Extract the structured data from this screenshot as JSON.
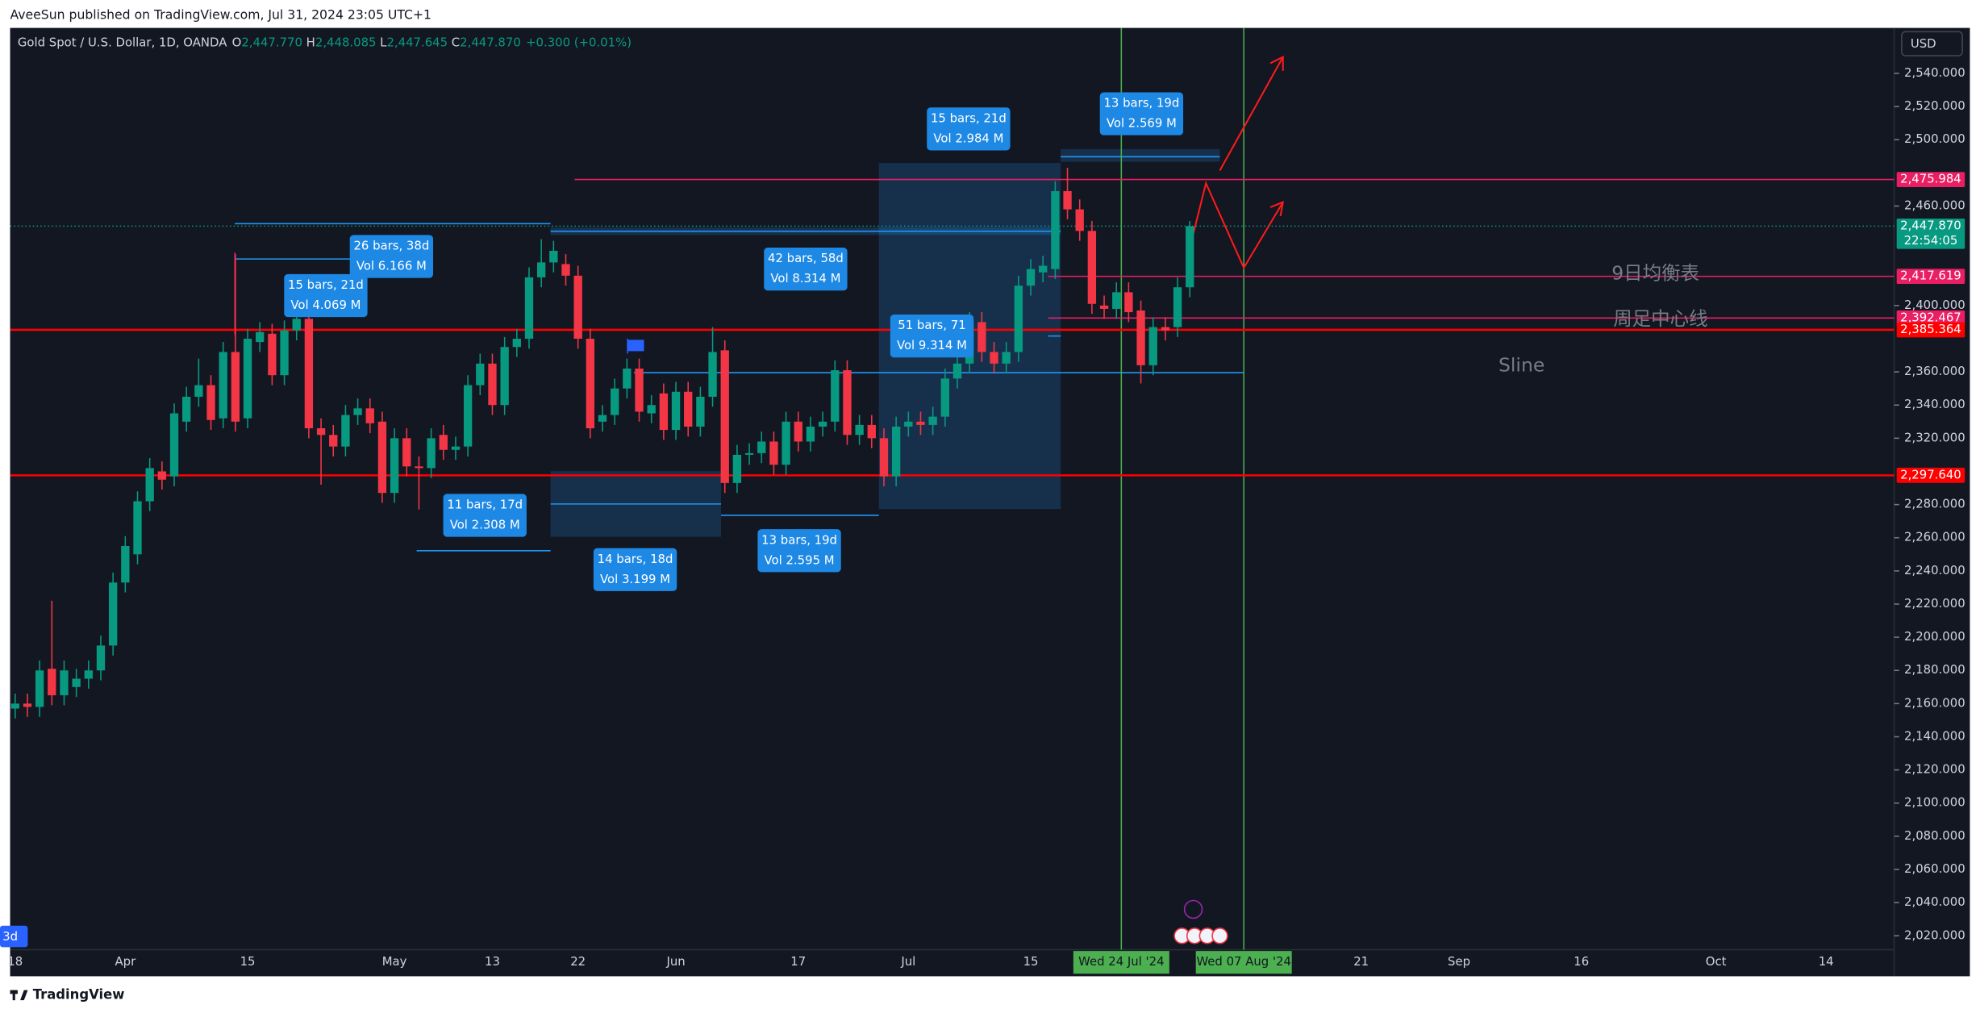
{
  "header": {
    "publisher": "AveeSun published on TradingView.com, Jul 31, 2024 23:05 UTC+1"
  },
  "footer": {
    "brand": "TradingView"
  },
  "chart_data": {
    "type": "candlestick",
    "title": "Gold Spot / U.S. Dollar, 1D, OANDA",
    "ohlc_legend": [
      {
        "key": "O",
        "value": "2,447.770"
      },
      {
        "key": "H",
        "value": "2,448.085"
      },
      {
        "key": "L",
        "value": "2,447.645"
      },
      {
        "key": "C",
        "value": "2,447.870"
      }
    ],
    "change": "+0.300 (+0.01%)",
    "currency": "USD",
    "interval_badge": "3d",
    "up_color": "#089981",
    "down_color": "#f23645",
    "grid": false,
    "categories": [
      "18",
      null,
      null,
      null,
      null,
      null,
      null,
      null,
      null,
      "Apr",
      null,
      null,
      null,
      null,
      null,
      null,
      null,
      null,
      null,
      "15",
      null,
      null,
      null,
      null,
      null,
      null,
      null,
      null,
      null,
      null,
      null,
      "May",
      null,
      null,
      null,
      null,
      null,
      null,
      null,
      "13",
      null,
      null,
      null,
      null,
      null,
      null,
      "22",
      null,
      null,
      null,
      null,
      null,
      null,
      null,
      "Jun",
      null,
      null,
      null,
      null,
      null,
      null,
      null,
      null,
      null,
      "17",
      null,
      null,
      null,
      null,
      null,
      null,
      null,
      null,
      "Jul",
      null,
      null,
      null,
      null,
      null,
      null,
      null,
      null,
      null,
      "15",
      null,
      null,
      null,
      null,
      null,
      null,
      null,
      null,
      null,
      null,
      null,
      null,
      null,
      null,
      null,
      null,
      null,
      null,
      null,
      null,
      null,
      null,
      null,
      null,
      null,
      null,
      "21",
      null,
      null,
      null,
      null,
      null,
      null,
      null,
      "Sep",
      null,
      null,
      null,
      null,
      null,
      null,
      null,
      null,
      null,
      "16",
      null,
      null,
      null,
      null,
      null,
      null,
      null,
      null,
      null,
      null,
      "Oct",
      null,
      null,
      null,
      null,
      null,
      null,
      null,
      null,
      "14"
    ],
    "open": [
      2157,
      2160,
      2158,
      2181,
      2165,
      2170,
      2175,
      2180,
      2195,
      2233,
      2250,
      2282,
      2300,
      2297,
      2330,
      2345,
      2352,
      2332,
      2372,
      2332,
      2378,
      2383,
      2358,
      2385,
      2392,
      2326,
      2322,
      2315,
      2334,
      2338,
      2330,
      2287,
      2320,
      2303,
      2302,
      2322,
      2313,
      2315,
      2352,
      2365,
      2340,
      2375,
      2380,
      2417,
      2426,
      2425,
      2418,
      2380,
      2330,
      2334,
      2350,
      2362,
      2335,
      2347,
      2325,
      2348,
      2327,
      2345,
      2373,
      2293,
      2310,
      2311,
      2318,
      2304,
      2330,
      2318,
      2327,
      2330,
      2361,
      2322,
      2328,
      2320,
      2297,
      2327,
      2330,
      2328,
      2333,
      2356,
      2365,
      2390,
      2372,
      2365,
      2372,
      2412,
      2420,
      2422,
      2469,
      2458,
      2445,
      2400,
      2398,
      2408,
      2397,
      2364,
      2387,
      2387,
      2411,
      null,
      null,
      null,
      null,
      null,
      null,
      null,
      null,
      null,
      null,
      null,
      null,
      null,
      null,
      null,
      null,
      null,
      null,
      null,
      null,
      null,
      null,
      null,
      null,
      null,
      null,
      null,
      null,
      null,
      null,
      null,
      null,
      null,
      null,
      null,
      null,
      null,
      null,
      null,
      null,
      null,
      null,
      null,
      null,
      null,
      null,
      null,
      null,
      null,
      null,
      null,
      null
    ],
    "high": [
      2166,
      2166,
      2186,
      2222,
      2186,
      2181,
      2186,
      2201,
      2239,
      2261,
      2288,
      2308,
      2306,
      2341,
      2351,
      2368,
      2358,
      2378,
      2431,
      2386,
      2390,
      2389,
      2391,
      2398,
      2398,
      2332,
      2328,
      2340,
      2344,
      2344,
      2336,
      2326,
      2326,
      2309,
      2326,
      2328,
      2321,
      2358,
      2371,
      2371,
      2381,
      2386,
      2423,
      2440,
      2439,
      2431,
      2424,
      2386,
      2340,
      2356,
      2368,
      2368,
      2346,
      2353,
      2354,
      2354,
      2351,
      2387,
      2379,
      2316,
      2317,
      2324,
      2324,
      2336,
      2336,
      2333,
      2336,
      2367,
      2367,
      2334,
      2334,
      2326,
      2333,
      2336,
      2336,
      2339,
      2362,
      2371,
      2396,
      2396,
      2378,
      2378,
      2418,
      2428,
      2430,
      2475,
      2483,
      2464,
      2451,
      2406,
      2414,
      2414,
      2403,
      2393,
      2393,
      2417,
      2451,
      null,
      null,
      null,
      null,
      null,
      null,
      null,
      null,
      null,
      null,
      null,
      null,
      null,
      null,
      null,
      null,
      null,
      null,
      null,
      null,
      null,
      null,
      null,
      null,
      null,
      null,
      null,
      null,
      null,
      null,
      null,
      null,
      null,
      null,
      null,
      null,
      null,
      null,
      null,
      null,
      null,
      null,
      null,
      null,
      null,
      null,
      null,
      null,
      null,
      null,
      null,
      null
    ],
    "low": [
      2151,
      2152,
      2152,
      2159,
      2159,
      2164,
      2169,
      2174,
      2189,
      2227,
      2244,
      2276,
      2289,
      2291,
      2324,
      2339,
      2325,
      2326,
      2324,
      2326,
      2372,
      2352,
      2352,
      2379,
      2320,
      2292,
      2309,
      2309,
      2328,
      2323,
      2281,
      2281,
      2297,
      2277,
      2296,
      2307,
      2307,
      2309,
      2346,
      2334,
      2334,
      2369,
      2374,
      2411,
      2420,
      2412,
      2374,
      2320,
      2324,
      2328,
      2344,
      2330,
      2329,
      2319,
      2319,
      2321,
      2321,
      2339,
      2287,
      2287,
      2304,
      2305,
      2298,
      2298,
      2312,
      2312,
      2321,
      2324,
      2316,
      2316,
      2314,
      2291,
      2291,
      2321,
      2322,
      2322,
      2327,
      2350,
      2359,
      2366,
      2359,
      2359,
      2366,
      2406,
      2414,
      2416,
      2452,
      2439,
      2395,
      2392,
      2392,
      2390,
      2353,
      2358,
      2379,
      2381,
      2405,
      null,
      null,
      null,
      null,
      null,
      null,
      null,
      null,
      null,
      null,
      null,
      null,
      null,
      null,
      null,
      null,
      null,
      null,
      null,
      null,
      null,
      null,
      null,
      null,
      null,
      null,
      null,
      null,
      null,
      null,
      null,
      null,
      null,
      null,
      null,
      null,
      null,
      null,
      null,
      null,
      null,
      null,
      null,
      null,
      null,
      null,
      null,
      null,
      null,
      null,
      null,
      null
    ],
    "close": [
      2160,
      2158,
      2180,
      2165,
      2180,
      2175,
      2180,
      2195,
      2233,
      2255,
      2282,
      2302,
      2295,
      2335,
      2345,
      2352,
      2331,
      2372,
      2330,
      2380,
      2384,
      2358,
      2385,
      2392,
      2326,
      2322,
      2315,
      2334,
      2338,
      2329,
      2287,
      2320,
      2303,
      2302,
      2320,
      2313,
      2315,
      2352,
      2365,
      2340,
      2375,
      2380,
      2417,
      2426,
      2433,
      2418,
      2380,
      2326,
      2334,
      2350,
      2362,
      2336,
      2340,
      2325,
      2348,
      2327,
      2345,
      2372,
      2293,
      2310,
      2311,
      2318,
      2304,
      2330,
      2318,
      2327,
      2330,
      2361,
      2322,
      2328,
      2320,
      2297,
      2327,
      2330,
      2328,
      2333,
      2356,
      2365,
      2390,
      2372,
      2365,
      2372,
      2412,
      2422,
      2424,
      2469,
      2458,
      2445,
      2401,
      2398,
      2408,
      2396,
      2364,
      2387,
      2385,
      2411,
      2447.87,
      null,
      null,
      null,
      null,
      null,
      null,
      null,
      null,
      null,
      null,
      null,
      null,
      null,
      null,
      null,
      null,
      null,
      null,
      null,
      null,
      null,
      null,
      null,
      null,
      null,
      null,
      null,
      null,
      null,
      null,
      null,
      null,
      null,
      null,
      null,
      null,
      null,
      null,
      null,
      null,
      null,
      null,
      null,
      null,
      null,
      null,
      null,
      null,
      null,
      null,
      null,
      null
    ],
    "ylim": [
      1995.6,
      2567.4
    ],
    "yticks": [
      {
        "value": 2540,
        "label": "2,540.000"
      },
      {
        "value": 2520,
        "label": "2,520.000"
      },
      {
        "value": 2500,
        "label": "2,500.000"
      },
      {
        "value": 2460,
        "label": "2,460.000"
      },
      {
        "value": 2400,
        "label": "2,400.000"
      },
      {
        "value": 2360,
        "label": "2,360.000"
      },
      {
        "value": 2340,
        "label": "2,340.000"
      },
      {
        "value": 2320,
        "label": "2,320.000"
      },
      {
        "value": 2280,
        "label": "2,280.000"
      },
      {
        "value": 2260,
        "label": "2,260.000"
      },
      {
        "value": 2240,
        "label": "2,240.000"
      },
      {
        "value": 2220,
        "label": "2,220.000"
      },
      {
        "value": 2200,
        "label": "2,200.000"
      },
      {
        "value": 2180,
        "label": "2,180.000"
      },
      {
        "value": 2160,
        "label": "2,160.000"
      },
      {
        "value": 2140,
        "label": "2,140.000"
      },
      {
        "value": 2120,
        "label": "2,120.000"
      },
      {
        "value": 2100,
        "label": "2,100.000"
      },
      {
        "value": 2080,
        "label": "2,080.000"
      },
      {
        "value": 2060,
        "label": "2,060.000"
      },
      {
        "value": 2040,
        "label": "2,040.000"
      },
      {
        "value": 2020,
        "label": "2,020.000"
      }
    ],
    "price_lines": [
      {
        "value": 2475.984,
        "label": "2,475.984",
        "color": "#e91e63"
      },
      {
        "value": 2447.87,
        "label": "2,447.870",
        "countdown": "22:54:05",
        "color": "#089981"
      },
      {
        "value": 2417.619,
        "label": "2,417.619",
        "color": "#e91e63"
      },
      {
        "value": 2392.467,
        "label": "2,392.467",
        "color": "#e91e63"
      },
      {
        "value": 2385.364,
        "label": "2,385.364",
        "color": "#ff0000"
      },
      {
        "value": 2297.64,
        "label": "2,297.640",
        "color": "#ff0000"
      }
    ],
    "annotations": [
      {
        "lines": [
          "26 bars, 38d",
          "Vol 6.166 M"
        ]
      },
      {
        "lines": [
          "15 bars, 21d",
          "Vol 4.069 M"
        ]
      },
      {
        "lines": [
          "42 bars, 58d",
          "Vol 8.314 M"
        ]
      },
      {
        "lines": [
          "15 bars, 21d",
          "Vol 2.984 M"
        ]
      },
      {
        "lines": [
          "13 bars, 19d",
          "Vol 2.569 M"
        ]
      },
      {
        "lines": [
          "51 bars, 71",
          "Vol 9.314 M"
        ]
      },
      {
        "lines": [
          "11 bars, 17d",
          "Vol 2.308 M"
        ]
      },
      {
        "lines": [
          "14 bars, 18d",
          "Vol 3.199 M"
        ]
      },
      {
        "lines": [
          "13 bars, 19d",
          "Vol 2.595 M"
        ]
      }
    ],
    "text_notes": [
      "9日均衡表",
      "周足中心线",
      "Sline"
    ],
    "time_markers": [
      "Wed 24 Jul '24",
      "Wed 07 Aug '24"
    ]
  }
}
